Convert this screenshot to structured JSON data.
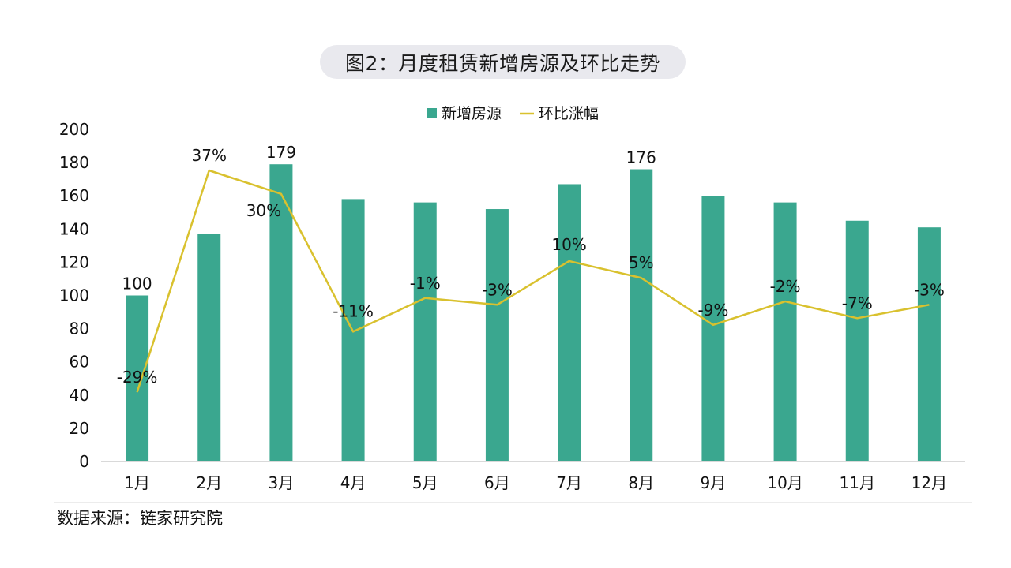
{
  "title": "图2：月度租赁新增房源及环比走势",
  "source": "数据来源：链家研究院",
  "colors": {
    "bar": "#3aa78f",
    "line": "#d9c12e",
    "axis": "#d9d9d9",
    "text": "#111111"
  },
  "chart_data": {
    "type": "bar+line",
    "categories": [
      "1月",
      "2月",
      "3月",
      "4月",
      "5月",
      "6月",
      "7月",
      "8月",
      "9月",
      "10月",
      "11月",
      "12月"
    ],
    "ylim": [
      0,
      200
    ],
    "yticks": [
      "0",
      "20",
      "40",
      "60",
      "80",
      "100",
      "120",
      "140",
      "160",
      "180",
      "200"
    ],
    "legend_position": "top-center",
    "grid": false,
    "series": [
      {
        "name": "新增房源",
        "type": "bar",
        "values": [
          100,
          137,
          179,
          158,
          156,
          152,
          167,
          176,
          160,
          156,
          145,
          141
        ],
        "data_labels": [
          "100",
          "",
          "179",
          "",
          "",
          "",
          "",
          "176",
          "",
          "",
          "",
          ""
        ]
      },
      {
        "name": "环比涨幅",
        "type": "line",
        "values": [
          -29,
          37,
          30,
          -11,
          -1,
          -3,
          10,
          5,
          -9,
          -2,
          -7,
          -3
        ],
        "data_labels": [
          "-29%",
          "37%",
          "30%",
          "-11%",
          "-1%",
          "-3%",
          "10%",
          "5%",
          "-9%",
          "-2%",
          "-7%",
          "-3%"
        ]
      }
    ]
  }
}
